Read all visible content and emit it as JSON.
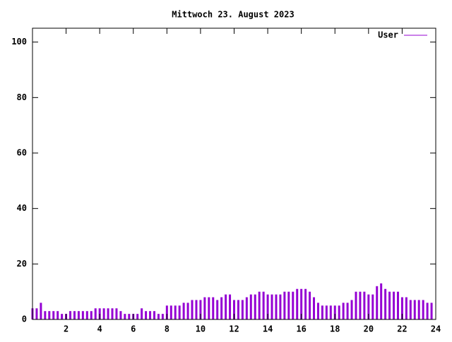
{
  "chart_data": {
    "type": "impulse",
    "title": "Mittwoch 23. August 2023",
    "x": [
      0,
      0.25,
      0.5,
      0.75,
      1,
      1.25,
      1.5,
      1.75,
      2,
      2.25,
      2.5,
      2.75,
      3,
      3.25,
      3.5,
      3.75,
      4,
      4.25,
      4.5,
      4.75,
      5,
      5.25,
      5.5,
      5.75,
      6,
      6.25,
      6.5,
      6.75,
      7,
      7.25,
      7.5,
      7.75,
      8,
      8.25,
      8.5,
      8.75,
      9,
      9.25,
      9.5,
      9.75,
      10,
      10.25,
      10.5,
      10.75,
      11,
      11.25,
      11.5,
      11.75,
      12,
      12.25,
      12.5,
      12.75,
      13,
      13.25,
      13.5,
      13.75,
      14,
      14.25,
      14.5,
      14.75,
      15,
      15.25,
      15.5,
      15.75,
      16,
      16.25,
      16.5,
      16.75,
      17,
      17.25,
      17.5,
      17.75,
      18,
      18.25,
      18.5,
      18.75,
      19,
      19.25,
      19.5,
      19.75,
      20,
      20.25,
      20.5,
      20.75,
      21,
      21.25,
      21.5,
      21.75,
      22,
      22.25,
      22.5,
      22.75,
      23,
      23.25,
      23.5,
      23.75
    ],
    "series": [
      {
        "name": "User",
        "color": "#9400d3",
        "values": [
          4,
          4,
          6,
          3,
          3,
          3,
          3,
          2,
          2,
          3,
          3,
          3,
          3,
          3,
          3,
          4,
          4,
          4,
          4,
          4,
          4,
          3,
          2,
          2,
          2,
          2,
          4,
          3,
          3,
          3,
          2,
          2,
          5,
          5,
          5,
          5,
          6,
          6,
          7,
          7,
          7,
          8,
          8,
          8,
          7,
          8,
          9,
          9,
          7,
          7,
          7,
          8,
          9,
          9,
          10,
          10,
          9,
          9,
          9,
          9,
          10,
          10,
          10,
          11,
          11,
          11,
          10,
          8,
          6,
          5,
          5,
          5,
          5,
          5,
          6,
          6,
          7,
          10,
          10,
          10,
          9,
          9,
          12,
          13,
          11,
          10,
          10,
          10,
          8,
          8,
          7,
          7,
          7,
          7,
          6,
          6
        ]
      }
    ],
    "xlim": [
      0,
      24
    ],
    "xticks": [
      2,
      4,
      6,
      8,
      10,
      12,
      14,
      16,
      18,
      20,
      22,
      24
    ],
    "ylim": [
      0,
      105
    ],
    "yticks": [
      0,
      20,
      40,
      60,
      80,
      100
    ],
    "legend": "top-right"
  }
}
